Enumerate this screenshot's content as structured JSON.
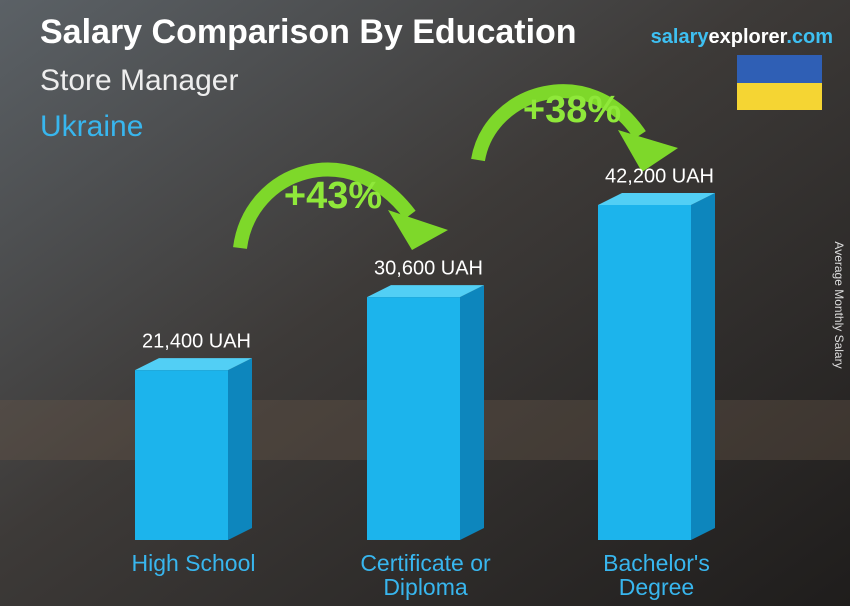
{
  "chart_data": {
    "type": "bar",
    "title": "Salary Comparison By Education",
    "subtitle": "Store Manager",
    "country": "Ukraine",
    "brand": [
      "salary",
      "explorer",
      ".com"
    ],
    "y_axis_label": "Average Monthly Salary",
    "categories": [
      "High School",
      "Certificate or Diploma",
      "Bachelor's Degree"
    ],
    "values": [
      21400,
      30600,
      42200
    ],
    "value_labels": [
      "21,400 UAH",
      "30,600 UAH",
      "42,200 UAH"
    ],
    "annotations": [
      "+43%",
      "+38%"
    ],
    "color": "#1cb4ec"
  }
}
